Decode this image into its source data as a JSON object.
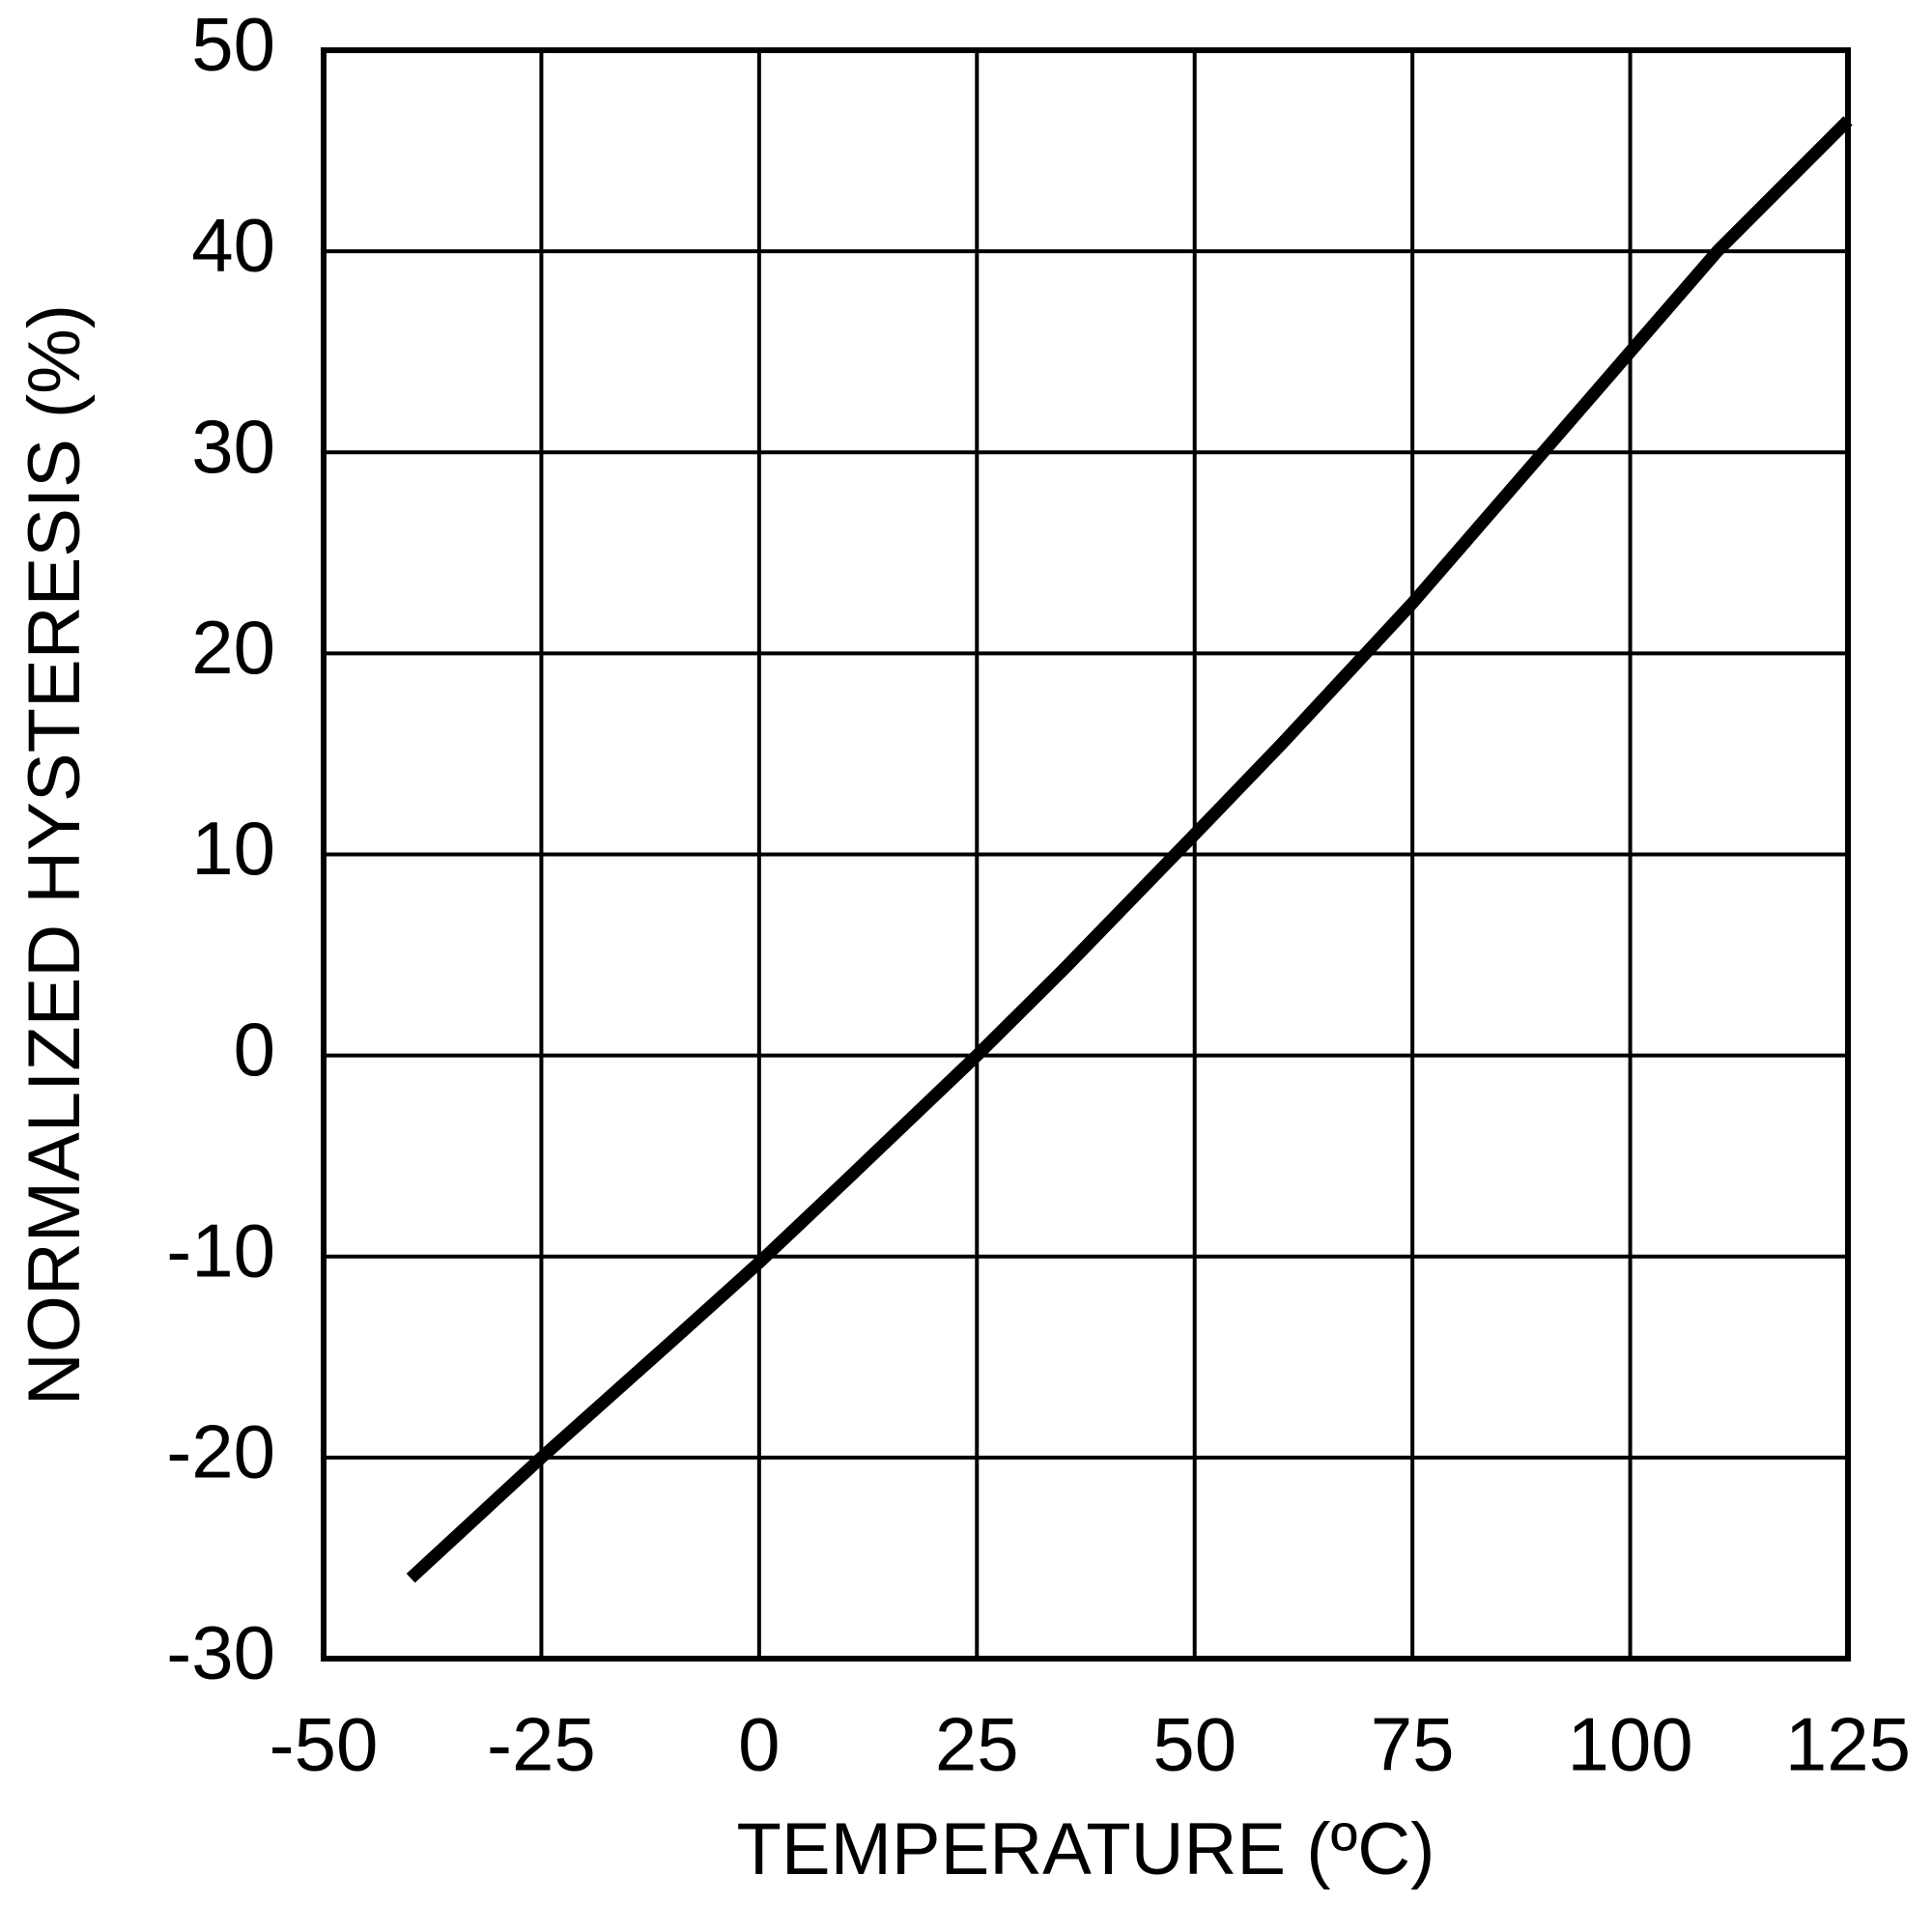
{
  "chart_data": {
    "type": "line",
    "x_label": "TEMPERATURE (ºC)",
    "y_label": "NORMALIZED HYSTERESIS (%)",
    "x": [
      -40,
      -25,
      -10,
      0,
      10,
      25,
      35,
      50,
      60,
      75,
      90,
      100,
      110,
      125
    ],
    "series": [
      {
        "color": "#000000",
        "values": [
          -26,
          -20,
          -14.2,
          -10.3,
          -6.2,
          0,
          4.3,
          11,
          15.5,
          22.5,
          30,
          35,
          40,
          46.5
        ]
      }
    ],
    "xlim": [
      -50,
      125
    ],
    "xticks": [
      -50,
      -25,
      0,
      25,
      50,
      75,
      100,
      125
    ],
    "ylim": [
      -30,
      50
    ],
    "yticks": [
      -30,
      -20,
      -10,
      0,
      10,
      20,
      30,
      40,
      50
    ],
    "grid": true
  }
}
